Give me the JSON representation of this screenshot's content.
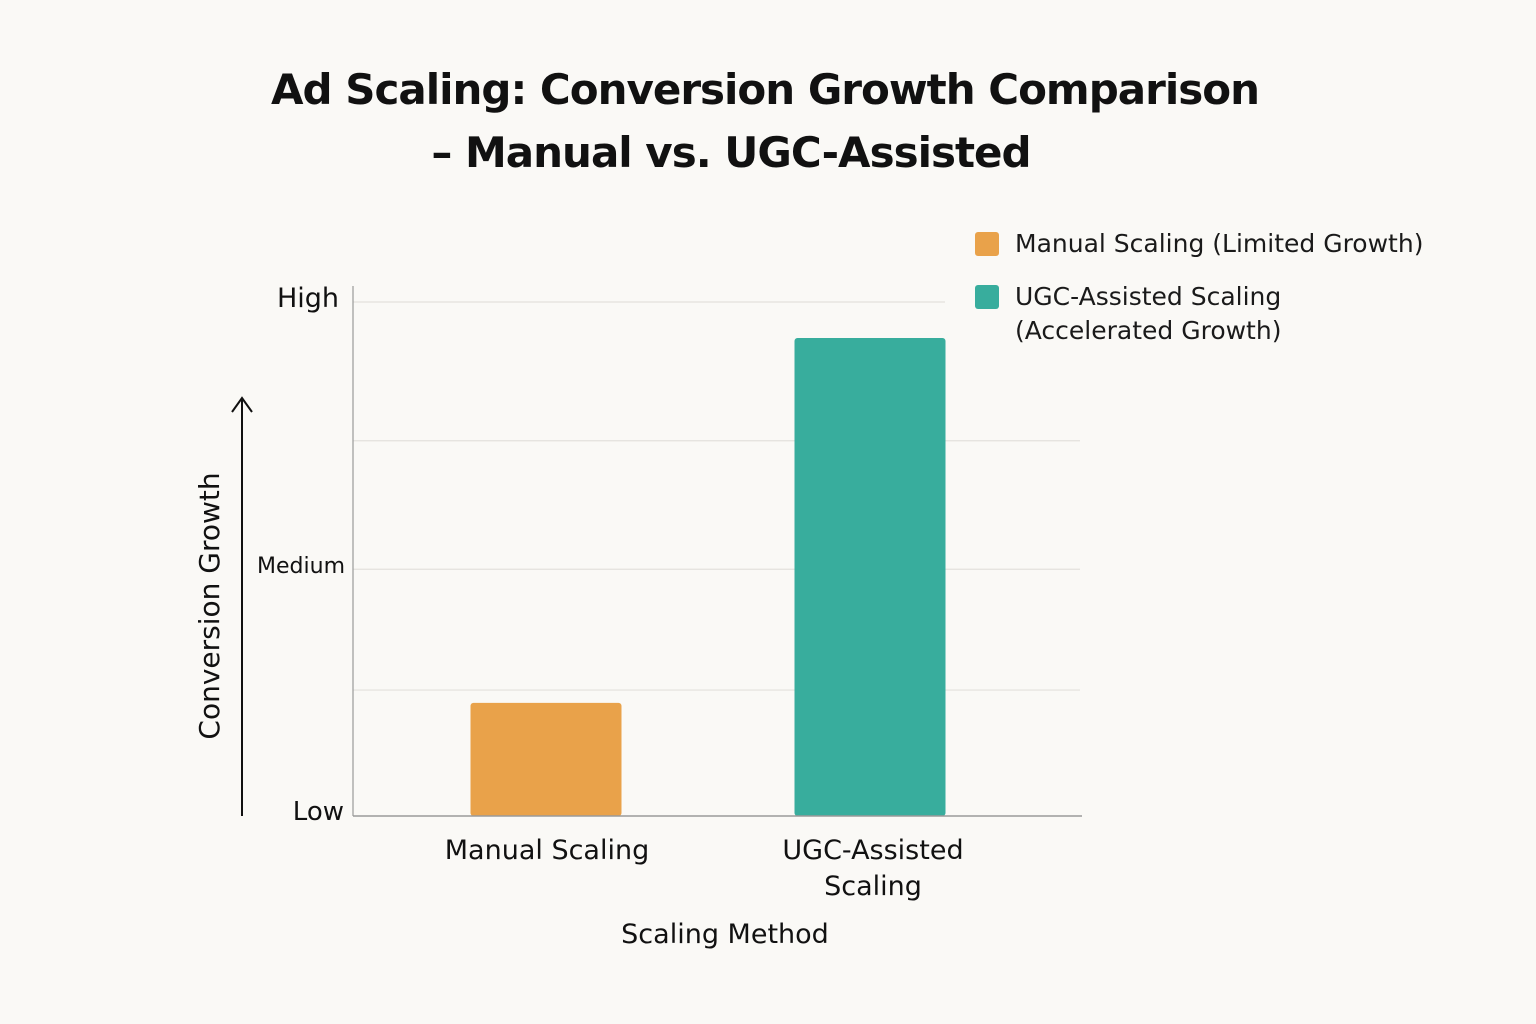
{
  "title_line1": "Ad Scaling: Conversion Growth Comparison",
  "title_line2": "– Manual vs. UGC-Assisted",
  "colors": {
    "manual": "#e9a24a",
    "ugc": "#38ad9d",
    "grid": "#e3e1dc",
    "axis": "#9a9a9a"
  },
  "legend": {
    "manual": "Manual Scaling (Limited Growth)",
    "ugc": "UGC-Assisted Scaling\n(Accelerated Growth)"
  },
  "chart_data": {
    "type": "bar",
    "title": "Ad Scaling: Conversion Growth Comparison – Manual vs. UGC-Assisted",
    "xlabel": "Scaling Method",
    "ylabel": "Conversion Growth",
    "categories": [
      "Manual Scaling",
      "UGC-Assisted Scaling"
    ],
    "values": [
      0.22,
      0.93
    ],
    "ylim": [
      0,
      1
    ],
    "y_tick_labels": [
      {
        "label": "Low",
        "value": 0
      },
      {
        "label": "Medium",
        "value": 0.48
      },
      {
        "label": "High",
        "value": 1
      }
    ],
    "grid": true,
    "legend_position": "top-right"
  }
}
